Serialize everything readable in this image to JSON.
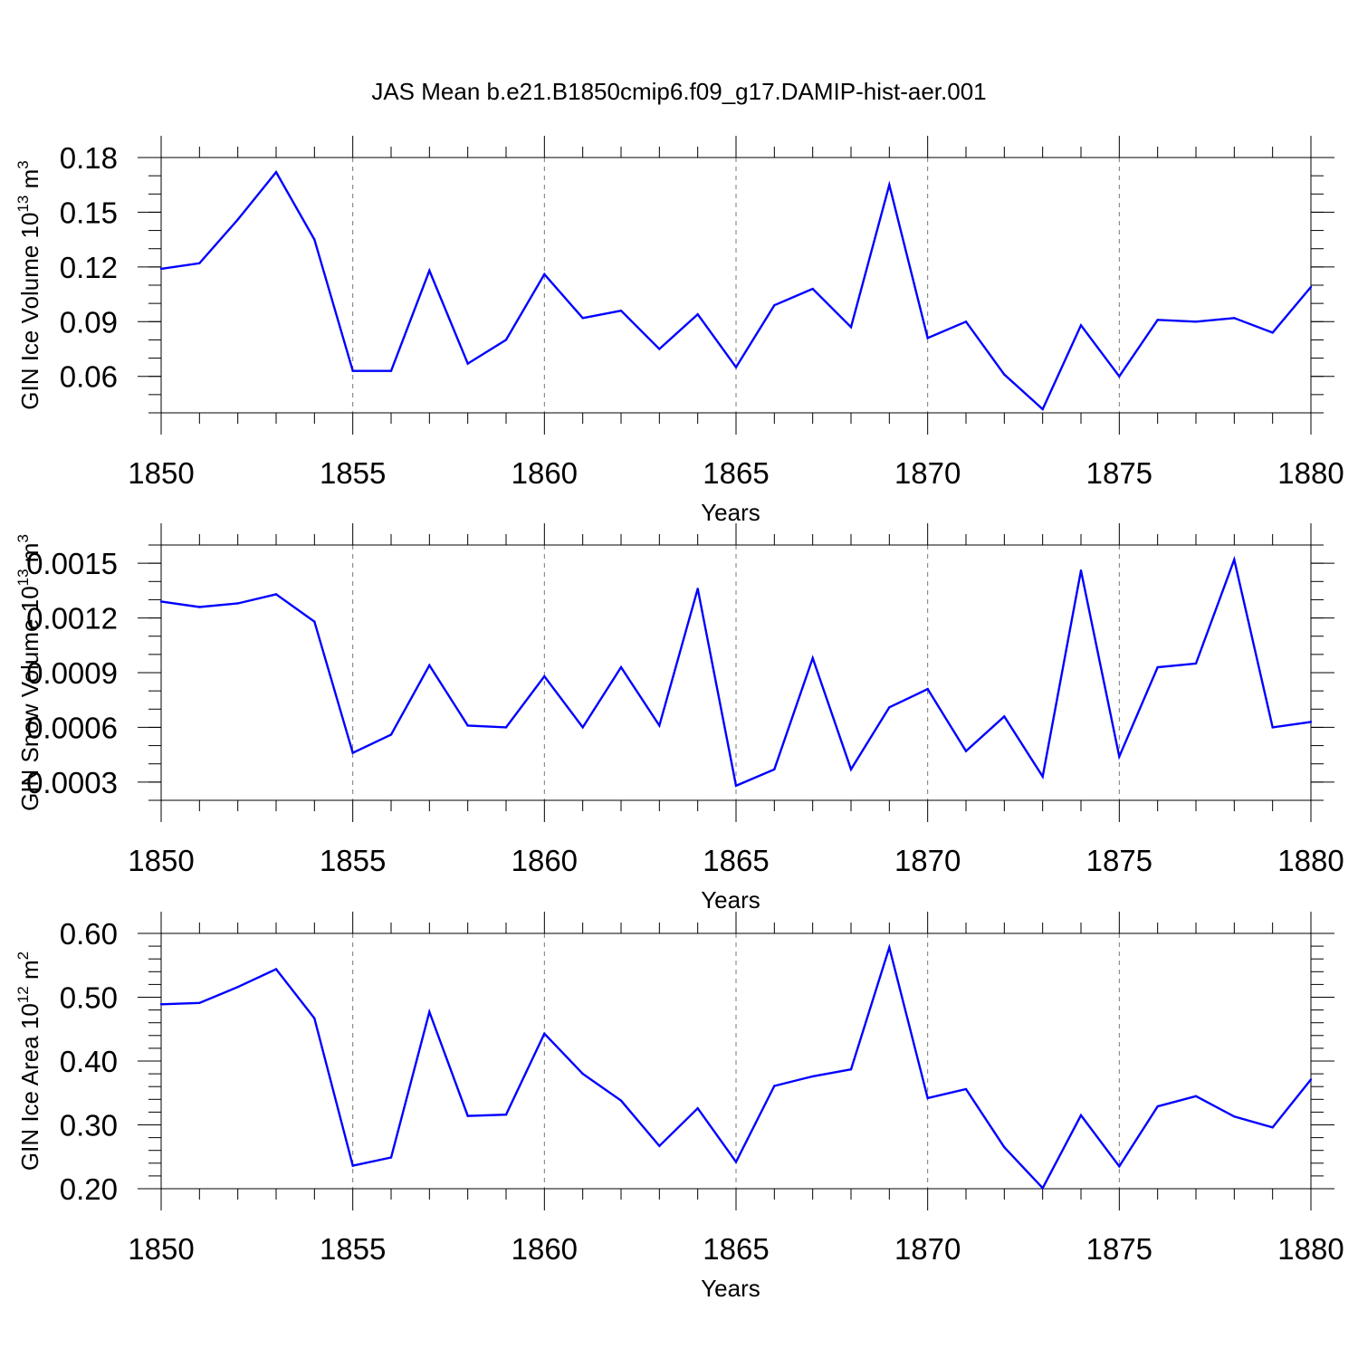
{
  "title": "JAS Mean b.e21.B1850cmip6.f09_g17.DAMIP-hist-aer.001",
  "line_color": "#0000ff",
  "chart_data": [
    {
      "type": "line",
      "xlabel": "Years",
      "ylabel": {
        "main": "GIN Ice Volume 10",
        "exp": "13",
        "unit": " m",
        "unit_exp": "3"
      },
      "xlim": [
        1850,
        1880
      ],
      "ylim": [
        0.04,
        0.18
      ],
      "xticks": [
        "1850",
        "1855",
        "1860",
        "1865",
        "1870",
        "1875",
        "1880"
      ],
      "yticks": [
        "0.06",
        "0.09",
        "0.12",
        "0.15",
        "0.18"
      ],
      "x": [
        1850,
        1851,
        1852,
        1853,
        1854,
        1855,
        1856,
        1857,
        1858,
        1859,
        1860,
        1861,
        1862,
        1863,
        1864,
        1865,
        1866,
        1867,
        1868,
        1869,
        1870,
        1871,
        1872,
        1873,
        1874,
        1875,
        1876,
        1877,
        1878,
        1879,
        1880
      ],
      "values": [
        0.119,
        0.122,
        0.146,
        0.172,
        0.135,
        0.063,
        0.063,
        0.118,
        0.067,
        0.08,
        0.116,
        0.092,
        0.096,
        0.075,
        0.094,
        0.065,
        0.099,
        0.108,
        0.087,
        0.165,
        0.081,
        0.09,
        0.061,
        0.042,
        0.088,
        0.06,
        0.091,
        0.09,
        0.092,
        0.084,
        0.109
      ]
    },
    {
      "type": "line",
      "xlabel": "Years",
      "ylabel": {
        "main": "GIN Snow Volume 10",
        "exp": "13",
        "unit": " m",
        "unit_exp": "3"
      },
      "xlim": [
        1850,
        1880
      ],
      "ylim": [
        0.0002,
        0.0016
      ],
      "xticks": [
        "1850",
        "1855",
        "1860",
        "1865",
        "1870",
        "1875",
        "1880"
      ],
      "yticks": [
        "0.0003",
        "0.0006",
        "0.0009",
        "0.0012",
        "0.0015"
      ],
      "x": [
        1850,
        1851,
        1852,
        1853,
        1854,
        1855,
        1856,
        1857,
        1858,
        1859,
        1860,
        1861,
        1862,
        1863,
        1864,
        1865,
        1866,
        1867,
        1868,
        1869,
        1870,
        1871,
        1872,
        1873,
        1874,
        1875,
        1876,
        1877,
        1878,
        1879,
        1880
      ],
      "values": [
        0.00129,
        0.00126,
        0.00128,
        0.00133,
        0.00118,
        0.00046,
        0.00056,
        0.00094,
        0.00061,
        0.0006,
        0.00088,
        0.0006,
        0.00093,
        0.00061,
        0.00136,
        0.00028,
        0.00037,
        0.00098,
        0.00037,
        0.00071,
        0.00081,
        0.00047,
        0.00066,
        0.00033,
        0.00146,
        0.00044,
        0.00093,
        0.00095,
        0.00152,
        0.0006,
        0.00063
      ]
    },
    {
      "type": "line",
      "xlabel": "Years",
      "ylabel": {
        "main": "GIN Ice Area 10",
        "exp": "12",
        "unit": " m",
        "unit_exp": "2"
      },
      "xlim": [
        1850,
        1880
      ],
      "ylim": [
        0.2,
        0.6
      ],
      "xticks": [
        "1850",
        "1855",
        "1860",
        "1865",
        "1870",
        "1875",
        "1880"
      ],
      "yticks": [
        "0.20",
        "0.30",
        "0.40",
        "0.50",
        "0.60"
      ],
      "x": [
        1850,
        1851,
        1852,
        1853,
        1854,
        1855,
        1856,
        1857,
        1858,
        1859,
        1860,
        1861,
        1862,
        1863,
        1864,
        1865,
        1866,
        1867,
        1868,
        1869,
        1870,
        1871,
        1872,
        1873,
        1874,
        1875,
        1876,
        1877,
        1878,
        1879,
        1880
      ],
      "values": [
        0.489,
        0.491,
        0.516,
        0.544,
        0.467,
        0.236,
        0.249,
        0.477,
        0.314,
        0.316,
        0.443,
        0.38,
        0.338,
        0.267,
        0.326,
        0.242,
        0.361,
        0.376,
        0.387,
        0.578,
        0.342,
        0.356,
        0.265,
        0.201,
        0.315,
        0.235,
        0.329,
        0.345,
        0.313,
        0.296,
        0.371
      ]
    }
  ]
}
